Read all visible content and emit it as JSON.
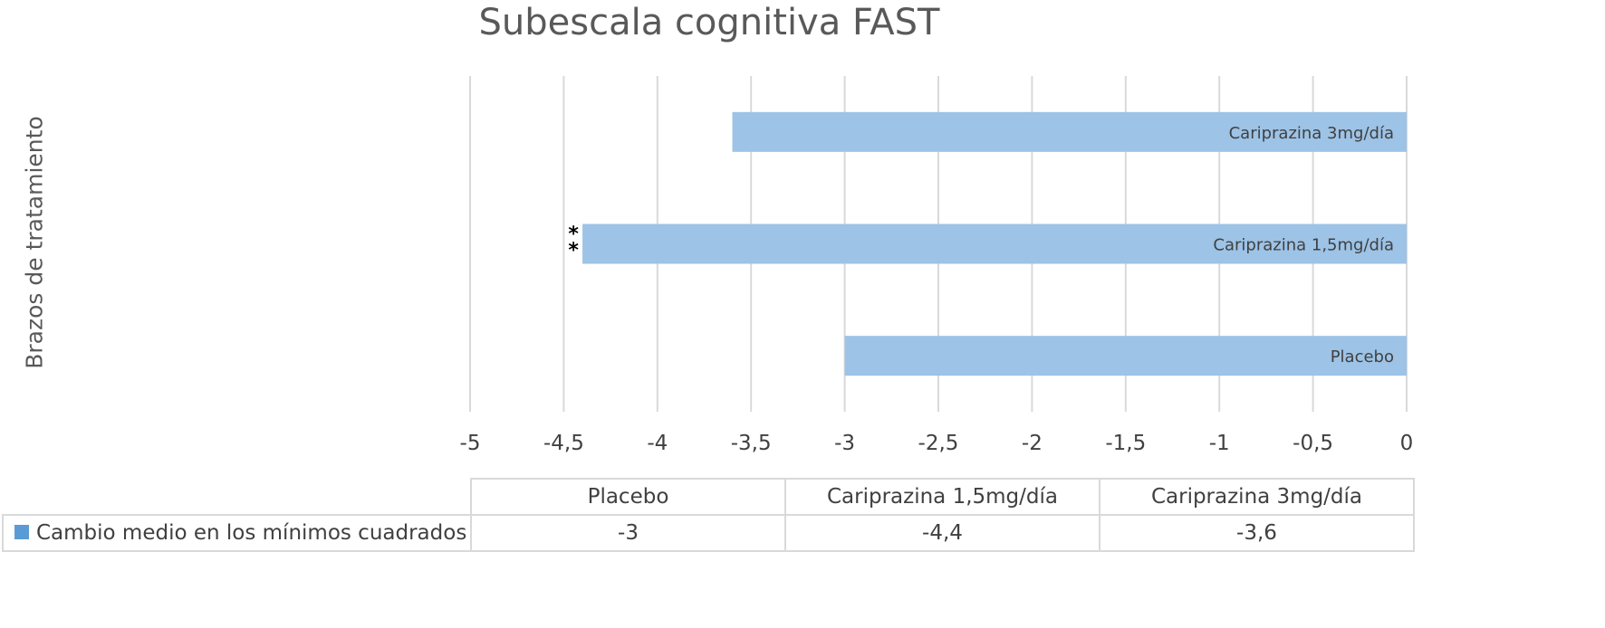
{
  "chart_data": {
    "type": "bar",
    "orientation": "horizontal",
    "title": "Subescala cognitiva FAST",
    "ylabel": "Brazos de tratamiento",
    "xlim": [
      -5,
      0
    ],
    "x_tick_step": 0.5,
    "x_tick_labels": [
      "-5",
      "-4,5",
      "-4",
      "-3,5",
      "-3",
      "-2,5",
      "-2",
      "-1,5",
      "-1",
      "-0,5",
      "0"
    ],
    "categories": [
      "Placebo",
      "Cariprazina 1,5mg/día",
      "Cariprazina 3mg/día"
    ],
    "series": [
      {
        "name": "Cambio medio en los mínimos cuadrados",
        "values": [
          -3,
          -4.4,
          -3.6
        ],
        "value_labels": [
          "-3",
          "-4,4",
          "-3,6"
        ],
        "color": "#5b9bd5",
        "bar_color": "#9dc3e6"
      }
    ],
    "annotations": [
      {
        "category": "Cariprazina 1,5mg/día",
        "text": "**"
      }
    ],
    "grid": true,
    "data_table": true
  }
}
